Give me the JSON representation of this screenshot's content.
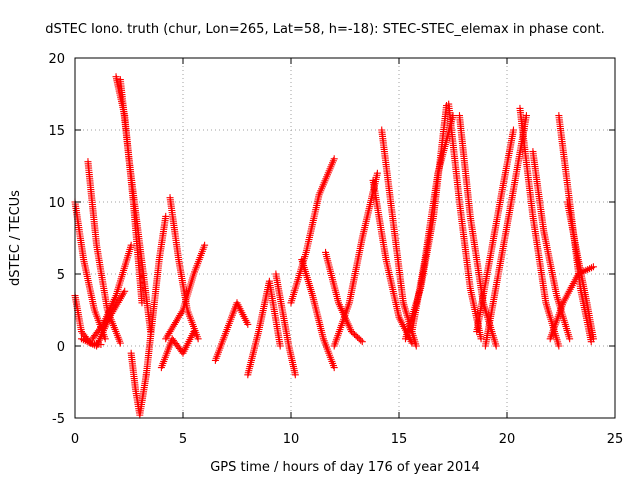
{
  "chart_data": {
    "type": "scatter",
    "title": "dSTEC Iono. truth (chur, Lon=265, Lat=58, h=-18): STEC-STEC_elemax in phase cont.",
    "xlabel": "GPS time / hours of day 176 of year 2014",
    "ylabel": "dSTEC  / TECUs",
    "xlim": [
      0,
      25
    ],
    "ylim": [
      -5,
      20
    ],
    "xticks": [
      "0",
      "5",
      "10",
      "15",
      "20",
      "25"
    ],
    "yticks": [
      "-5",
      "0",
      "5",
      "10",
      "15",
      "20"
    ],
    "grid": true,
    "marker": "+",
    "colors": {
      "series": "#ff0000",
      "grid": "#a0a0a0",
      "axis": "#000000"
    },
    "arcs": [
      {
        "x": [
          0.0,
          0.3,
          0.7,
          1.2
        ],
        "y": [
          3.5,
          1.0,
          0.2,
          0.1
        ]
      },
      {
        "x": [
          0.0,
          0.4,
          0.9,
          1.4
        ],
        "y": [
          10.0,
          6.0,
          2.5,
          0.5
        ]
      },
      {
        "x": [
          0.6,
          1.0,
          1.5,
          2.1
        ],
        "y": [
          12.8,
          7.0,
          2.5,
          0.2
        ]
      },
      {
        "x": [
          0.3,
          1.0,
          1.6,
          2.3
        ],
        "y": [
          0.5,
          0.0,
          2.0,
          3.8
        ]
      },
      {
        "x": [
          0.8,
          1.3,
          1.9,
          2.6
        ],
        "y": [
          0.5,
          1.5,
          3.5,
          7.0
        ]
      },
      {
        "x": [
          1.9,
          2.3,
          2.7,
          3.1
        ],
        "y": [
          18.7,
          16.0,
          10.0,
          3.0
        ]
      },
      {
        "x": [
          2.1,
          2.5,
          3.0,
          3.5
        ],
        "y": [
          18.5,
          13.0,
          7.0,
          1.0
        ]
      },
      {
        "x": [
          2.6,
          2.8,
          3.0,
          3.3
        ],
        "y": [
          -0.5,
          -3.0,
          -4.8,
          -2.0
        ]
      },
      {
        "x": [
          3.3,
          3.6,
          3.9,
          4.2
        ],
        "y": [
          -2.0,
          2.0,
          6.0,
          9.0
        ]
      },
      {
        "x": [
          4.4,
          4.8,
          5.2,
          5.7
        ],
        "y": [
          10.3,
          6.0,
          2.5,
          0.5
        ]
      },
      {
        "x": [
          4.2,
          5.0,
          5.5,
          6.0
        ],
        "y": [
          0.5,
          2.5,
          5.0,
          7.0
        ]
      },
      {
        "x": [
          4.0,
          4.5,
          5.0,
          5.5
        ],
        "y": [
          -1.5,
          0.5,
          -0.5,
          1.0
        ]
      },
      {
        "x": [
          6.5,
          7.0,
          7.5,
          8.0
        ],
        "y": [
          -1.0,
          1.0,
          3.0,
          1.5
        ]
      },
      {
        "x": [
          8.0,
          8.5,
          9.0,
          9.5
        ],
        "y": [
          -2.0,
          1.0,
          4.5,
          0.0
        ]
      },
      {
        "x": [
          9.3,
          9.6,
          9.9,
          10.2
        ],
        "y": [
          5.0,
          2.5,
          0.0,
          -2.0
        ]
      },
      {
        "x": [
          10.0,
          10.7,
          11.3,
          12.0
        ],
        "y": [
          3.0,
          6.5,
          10.5,
          13.0
        ]
      },
      {
        "x": [
          10.5,
          11.0,
          11.5,
          12.0
        ],
        "y": [
          6.0,
          3.5,
          0.5,
          -1.5
        ]
      },
      {
        "x": [
          11.6,
          12.2,
          12.8,
          13.3
        ],
        "y": [
          6.5,
          3.0,
          1.0,
          0.3
        ]
      },
      {
        "x": [
          12.0,
          12.7,
          13.3,
          14.0
        ],
        "y": [
          0.0,
          3.0,
          7.5,
          12.0
        ]
      },
      {
        "x": [
          13.8,
          14.4,
          15.0,
          15.6
        ],
        "y": [
          11.5,
          6.0,
          2.0,
          0.2
        ]
      },
      {
        "x": [
          14.2,
          14.7,
          15.2,
          15.8
        ],
        "y": [
          15.0,
          9.0,
          3.0,
          0.0
        ]
      },
      {
        "x": [
          15.3,
          16.0,
          16.6,
          17.2
        ],
        "y": [
          0.5,
          4.0,
          9.0,
          16.7
        ]
      },
      {
        "x": [
          15.6,
          16.2,
          16.8,
          17.5
        ],
        "y": [
          1.0,
          6.0,
          12.0,
          16.0
        ]
      },
      {
        "x": [
          17.3,
          17.8,
          18.3,
          18.8
        ],
        "y": [
          16.8,
          10.0,
          4.0,
          0.5
        ]
      },
      {
        "x": [
          17.8,
          18.3,
          18.9,
          19.5
        ],
        "y": [
          16.0,
          9.0,
          3.0,
          0.0
        ]
      },
      {
        "x": [
          18.6,
          19.2,
          19.8,
          20.3
        ],
        "y": [
          1.0,
          6.0,
          11.0,
          15.0
        ]
      },
      {
        "x": [
          19.0,
          19.6,
          20.2,
          20.9
        ],
        "y": [
          0.0,
          5.0,
          10.0,
          16.0
        ]
      },
      {
        "x": [
          20.6,
          21.2,
          21.8,
          22.4
        ],
        "y": [
          16.5,
          9.0,
          3.0,
          0.0
        ]
      },
      {
        "x": [
          21.2,
          21.7,
          22.3,
          22.9
        ],
        "y": [
          13.5,
          8.0,
          3.5,
          0.5
        ]
      },
      {
        "x": [
          22.4,
          22.9,
          23.4,
          23.9
        ],
        "y": [
          16.0,
          10.0,
          4.0,
          0.3
        ]
      },
      {
        "x": [
          22.0,
          22.6,
          23.3,
          24.0
        ],
        "y": [
          0.5,
          3.0,
          5.0,
          5.5
        ]
      },
      {
        "x": [
          22.8,
          23.3,
          23.7,
          24.0
        ],
        "y": [
          10.0,
          6.0,
          3.0,
          0.5
        ]
      }
    ]
  }
}
